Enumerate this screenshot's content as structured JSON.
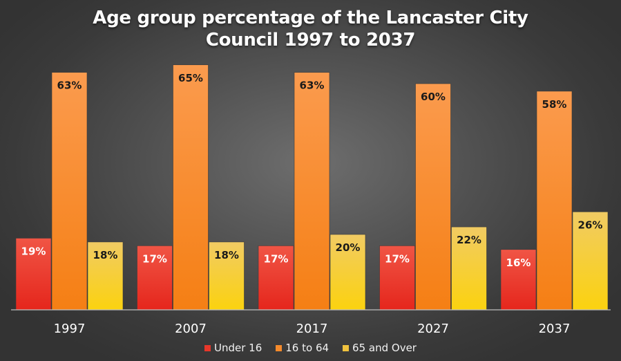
{
  "chart_data": {
    "type": "bar",
    "title_lines": [
      "Age group percentage of the Lancaster City",
      "Council 1997 to 2037"
    ],
    "categories": [
      "1997",
      "2007",
      "2017",
      "2027",
      "2037"
    ],
    "series": [
      {
        "name": "Under 16",
        "values": [
          19,
          17,
          17,
          17,
          16
        ],
        "labels": [
          "19%",
          "17%",
          "17%",
          "17%",
          "16%"
        ],
        "color_top": "#f05545",
        "color_bottom": "#e5261c"
      },
      {
        "name": "16 to 64",
        "values": [
          63,
          65,
          63,
          60,
          58
        ],
        "labels": [
          "63%",
          "65%",
          "63%",
          "60%",
          "58%"
        ],
        "color_top": "#fb9b4e",
        "color_bottom": "#f57f14"
      },
      {
        "name": "65 and Over",
        "values": [
          18,
          18,
          20,
          22,
          26
        ],
        "labels": [
          "18%",
          "18%",
          "20%",
          "22%",
          "26%"
        ],
        "color_top": "#f1cb63",
        "color_bottom": "#fbd20f"
      }
    ],
    "ylim": [
      0,
      65
    ],
    "grid": false,
    "legend_position": "bottom",
    "legend_colors": [
      "#e8372a",
      "#f58a2b",
      "#f0c23e"
    ]
  }
}
